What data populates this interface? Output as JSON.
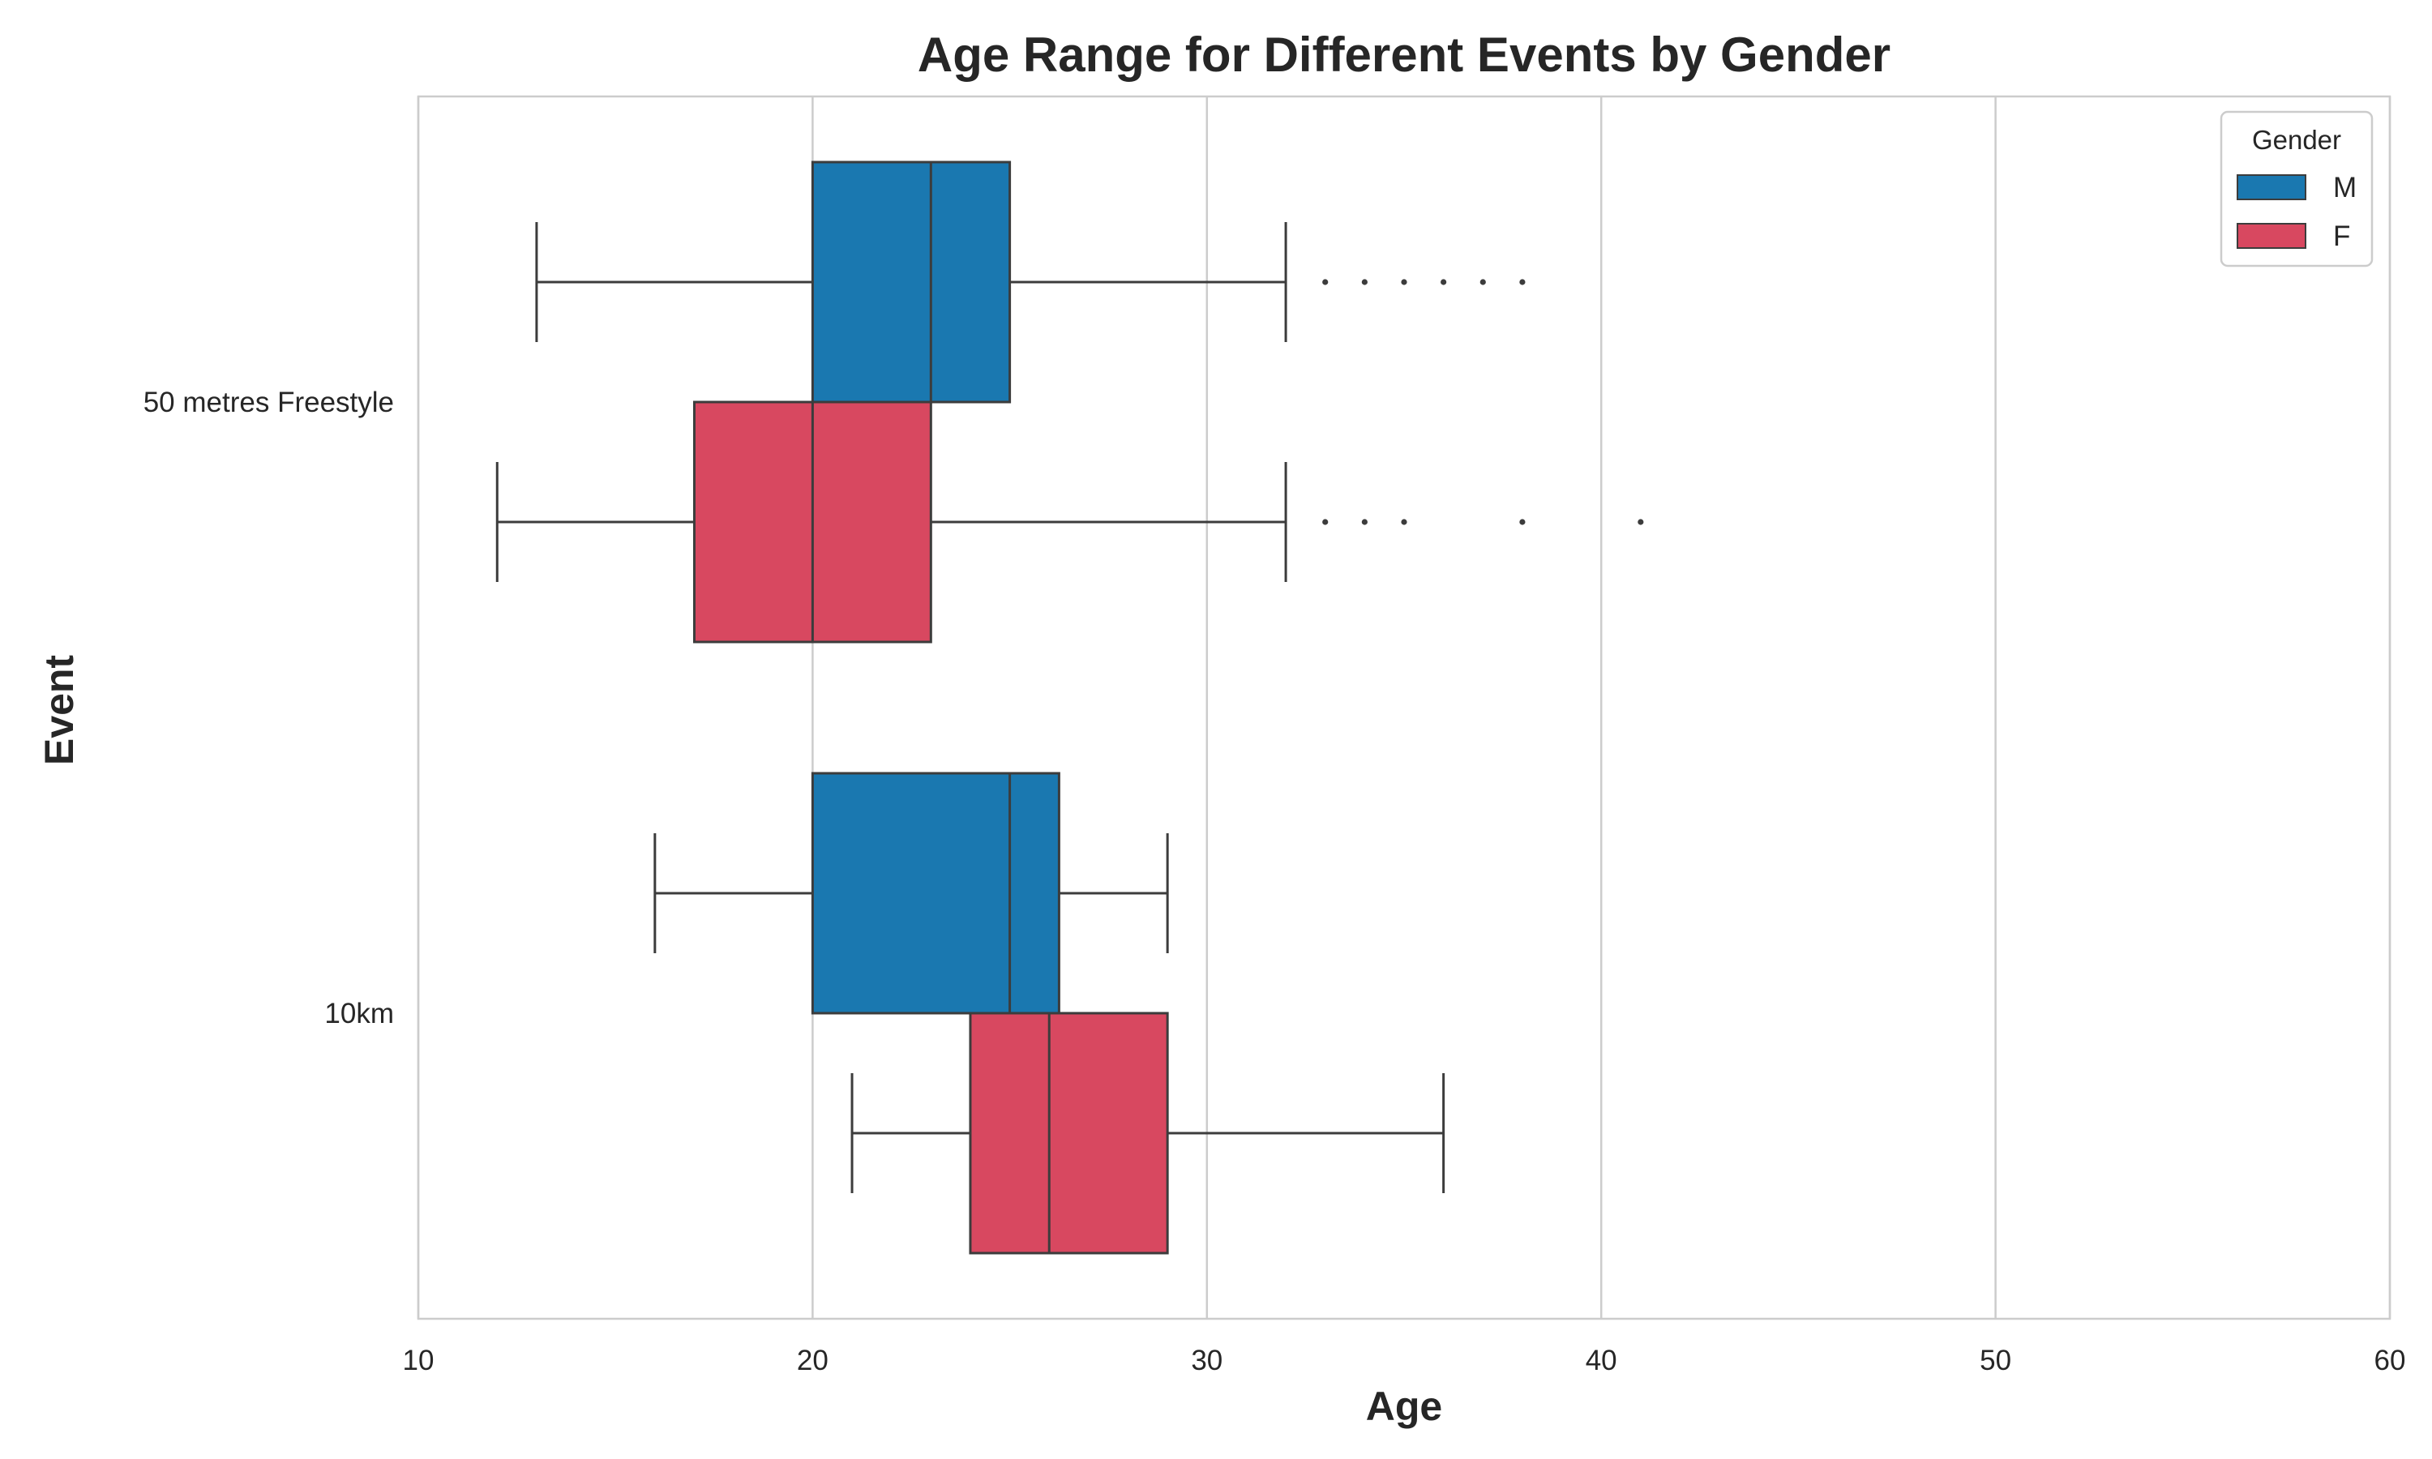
{
  "chart_data": {
    "type": "boxplot",
    "orientation": "horizontal",
    "title": "Age Range for Different Events by Gender",
    "xlabel": "Age",
    "ylabel": "Event",
    "xlim": [
      10,
      60
    ],
    "xticks": [
      10,
      20,
      30,
      40,
      50,
      60
    ],
    "categories": [
      "50 metres Freestyle",
      "10km"
    ],
    "grid": "vertical",
    "legend": {
      "title": "Gender",
      "placement": "top-right",
      "entries": [
        {
          "label": "M",
          "color": "#1a78b0"
        },
        {
          "label": "F",
          "color": "#d84860"
        }
      ]
    },
    "series": [
      {
        "name": "M",
        "color": "#1a78b0",
        "boxes": [
          {
            "category": "50 metres Freestyle",
            "whisker_low": 13,
            "q1": 20,
            "median": 23,
            "q3": 25,
            "whisker_high": 32,
            "outliers": [
              33,
              34,
              35,
              36,
              37,
              38
            ]
          },
          {
            "category": "10km",
            "whisker_low": 16,
            "q1": 20,
            "median": 25,
            "q3": 26.25,
            "whisker_high": 29,
            "outliers": []
          }
        ]
      },
      {
        "name": "F",
        "color": "#d84860",
        "boxes": [
          {
            "category": "50 metres Freestyle",
            "whisker_low": 12,
            "q1": 17,
            "median": 20,
            "q3": 23,
            "whisker_high": 32,
            "outliers": [
              33,
              34,
              35,
              38,
              41
            ]
          },
          {
            "category": "10km",
            "whisker_low": 21,
            "q1": 24,
            "median": 26,
            "q3": 29,
            "whisker_high": 36,
            "outliers": []
          }
        ]
      }
    ]
  }
}
